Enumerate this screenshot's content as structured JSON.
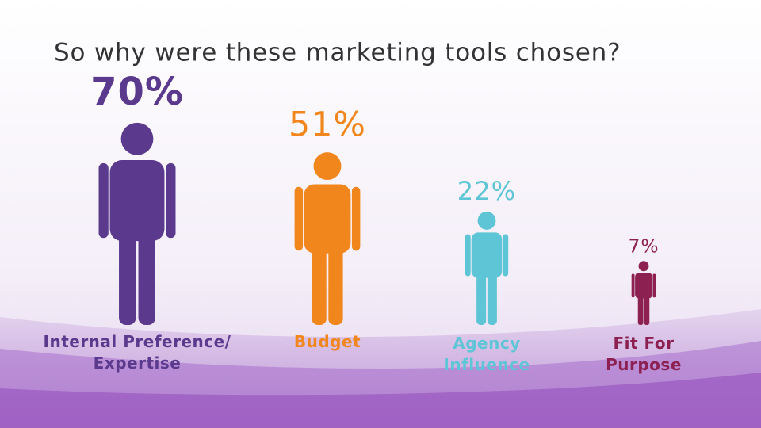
{
  "chart_data": {
    "type": "pictograph",
    "title": "So why were these marketing tools chosen?",
    "categories": [
      "Internal Preference/ Expertise",
      "Budget",
      "Agency Influence",
      "Fit For Purpose"
    ],
    "values": [
      70,
      51,
      22,
      7
    ],
    "value_labels": [
      "70%",
      "51%",
      "22%",
      "7%"
    ],
    "colors": [
      "#5b3a8e",
      "#f0861c",
      "#5ec5d6",
      "#8c2050"
    ]
  }
}
